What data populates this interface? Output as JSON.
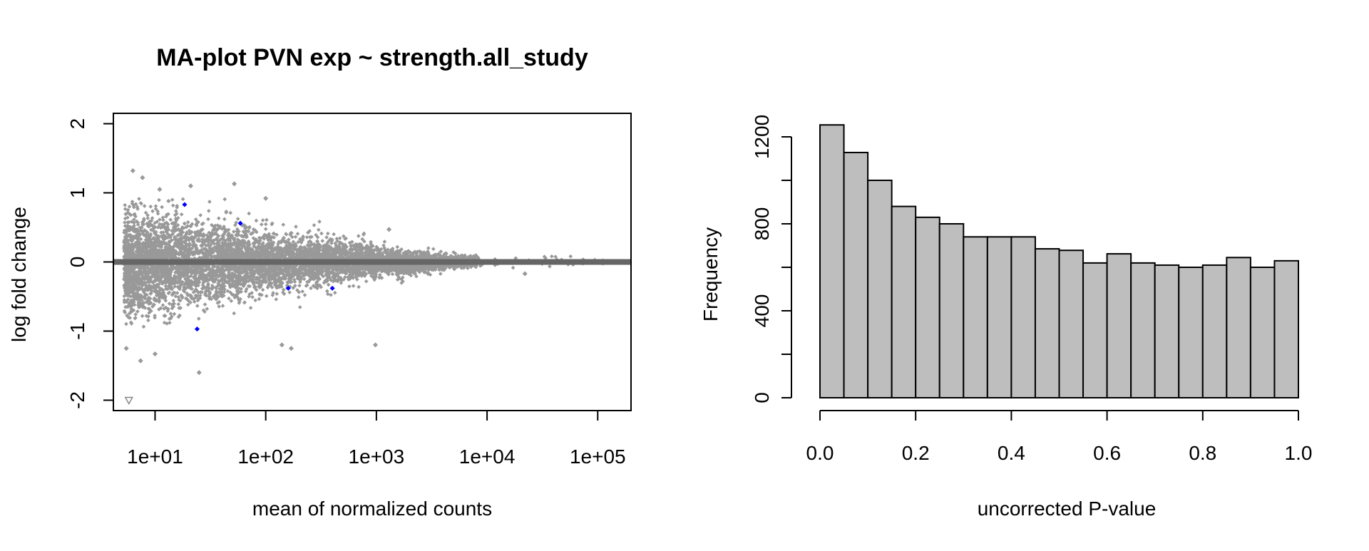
{
  "chart_data": [
    {
      "type": "scatter",
      "title": "MA-plot PVN exp ~ strength.all_study",
      "xlabel": "mean of normalized counts",
      "ylabel": "log fold change",
      "x_scale": "log10",
      "xlim": [
        4.2,
        200000
      ],
      "ylim": [
        -2.15,
        2.15
      ],
      "x_ticks": [
        10,
        100,
        1000,
        10000,
        100000
      ],
      "x_tick_labels": [
        "1e+01",
        "1e+02",
        "1e+03",
        "1e+04",
        "1e+05"
      ],
      "y_ticks": [
        -2,
        -1,
        0,
        1,
        2
      ],
      "y_tick_labels": [
        "-2",
        "-1",
        "0",
        "1",
        "2"
      ],
      "reference_line": {
        "y": 0,
        "color": "#666666"
      },
      "colors": {
        "points": "#999999",
        "significant": "#0000ff",
        "reference": "#666666"
      },
      "notable_points": [
        {
          "x": 6.3,
          "y": 1.32
        },
        {
          "x": 7.7,
          "y": 1.22
        },
        {
          "x": 11.0,
          "y": 1.05
        },
        {
          "x": 21.0,
          "y": 1.1
        },
        {
          "x": 52.0,
          "y": 1.13
        },
        {
          "x": 100.0,
          "y": 0.92
        },
        {
          "x": 1300.0,
          "y": 0.47
        },
        {
          "x": 5.5,
          "y": -1.25
        },
        {
          "x": 7.4,
          "y": -1.43
        },
        {
          "x": 10.0,
          "y": -1.33
        },
        {
          "x": 25.0,
          "y": -1.6
        },
        {
          "x": 140.0,
          "y": -1.2
        },
        {
          "x": 170.0,
          "y": -1.25
        },
        {
          "x": 980.0,
          "y": -1.2
        },
        {
          "x": 22000.0,
          "y": -0.17
        }
      ],
      "significant_points": [
        {
          "x": 18.5,
          "y": 0.83
        },
        {
          "x": 24.0,
          "y": -0.97
        },
        {
          "x": 59.0,
          "y": 0.56
        },
        {
          "x": 160.0,
          "y": -0.38
        },
        {
          "x": 400.0,
          "y": -0.38
        }
      ],
      "out_of_range_points": [
        {
          "x": 5.8,
          "y": -2.0,
          "marker": "triangle-down"
        }
      ]
    },
    {
      "type": "bar",
      "subtype": "histogram",
      "xlabel": "uncorrected P-value",
      "ylabel": "Frequency",
      "bin_edges": [
        0.0,
        0.05,
        0.1,
        0.15,
        0.2,
        0.25,
        0.3,
        0.35,
        0.4,
        0.45,
        0.5,
        0.55,
        0.6,
        0.65,
        0.7,
        0.75,
        0.8,
        0.85,
        0.9,
        0.95,
        1.0
      ],
      "values": [
        1255,
        1128,
        1000,
        880,
        830,
        800,
        740,
        740,
        740,
        685,
        678,
        620,
        662,
        620,
        610,
        600,
        610,
        645,
        600,
        630
      ],
      "xlim": [
        0,
        1
      ],
      "ylim": [
        0,
        1300
      ],
      "x_ticks": [
        0.0,
        0.2,
        0.4,
        0.6,
        0.8,
        1.0
      ],
      "x_tick_labels": [
        "0.0",
        "0.2",
        "0.4",
        "0.6",
        "0.8",
        "1.0"
      ],
      "y_ticks": [
        0,
        200,
        400,
        600,
        800,
        1000,
        1200
      ],
      "y_tick_labels": [
        "0",
        "",
        "400",
        "",
        "800",
        "",
        "1200"
      ],
      "colors": {
        "bar_fill": "#bebebe",
        "bar_stroke": "#000000"
      }
    }
  ]
}
